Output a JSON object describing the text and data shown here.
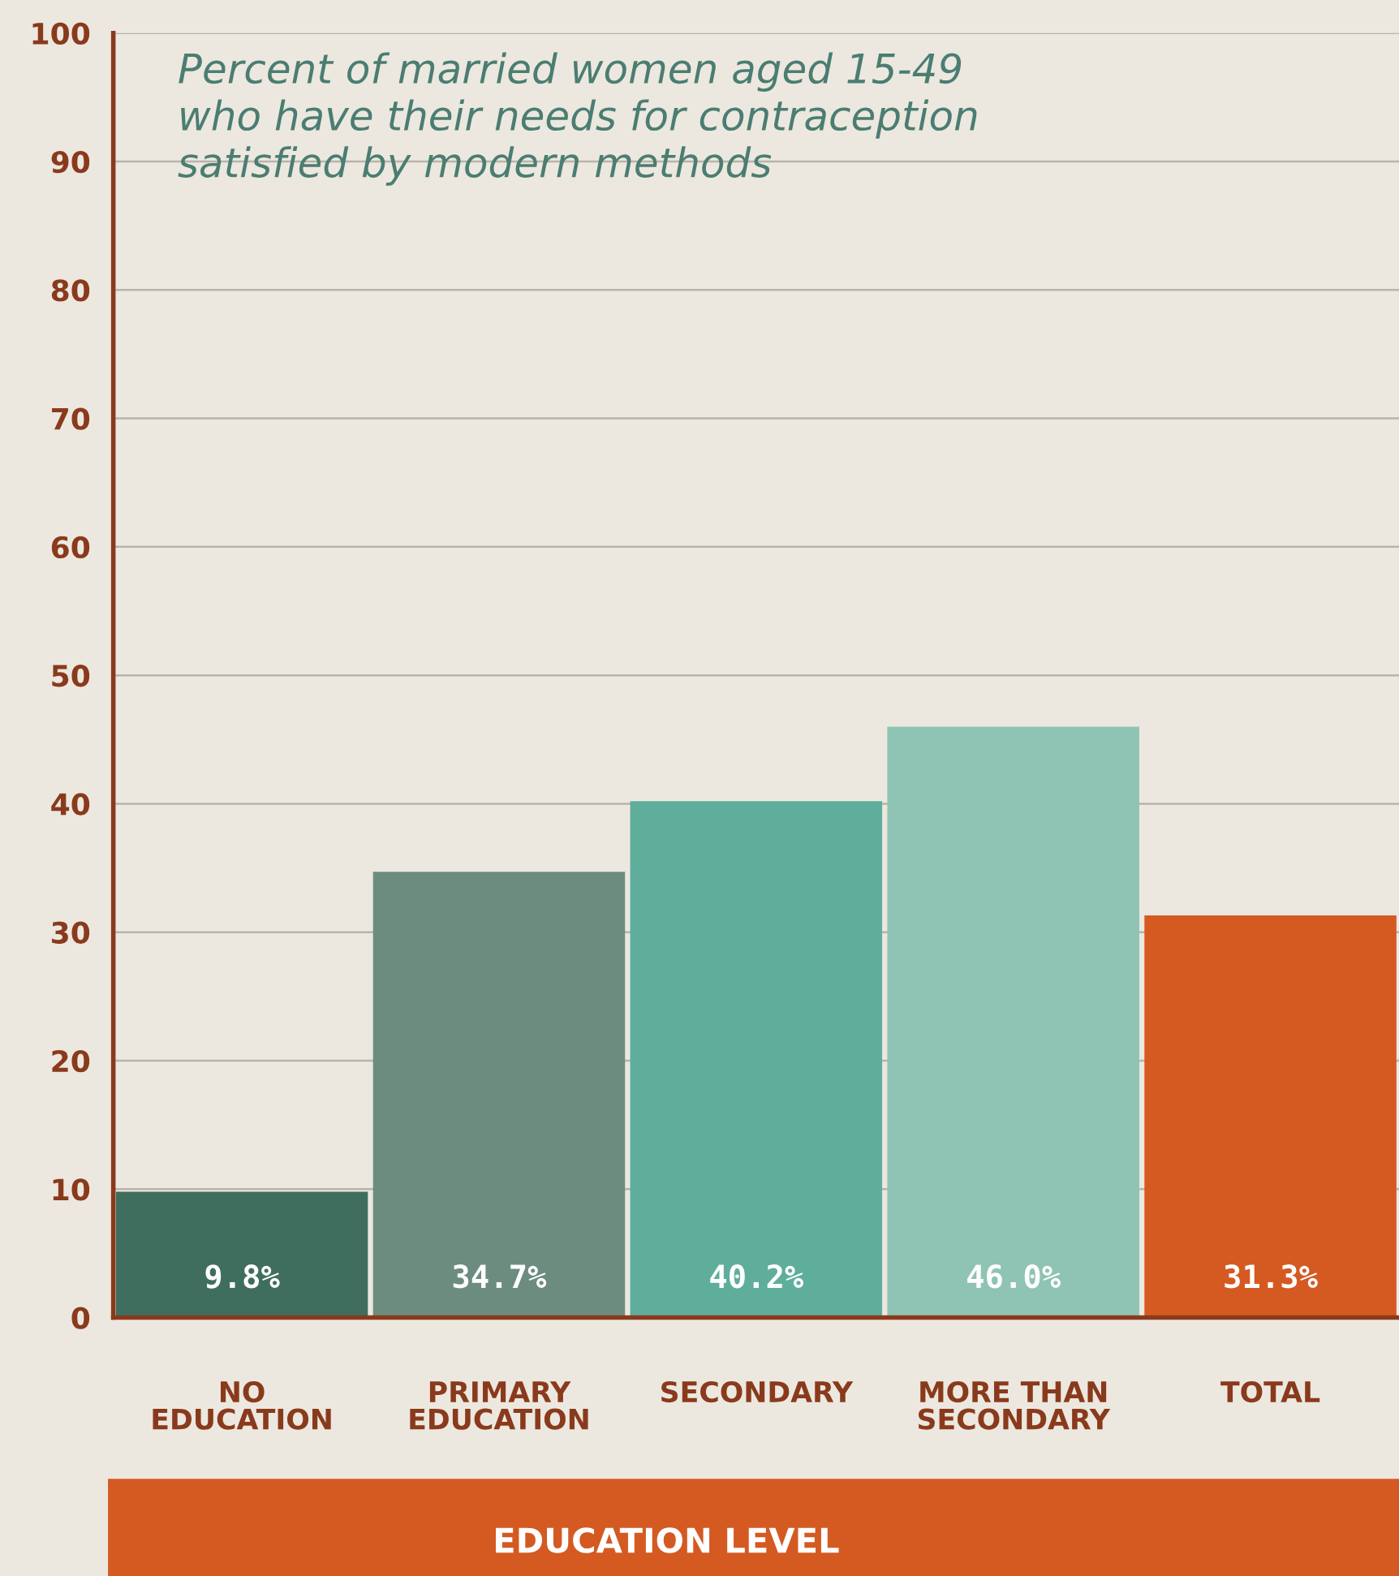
{
  "chart_data": {
    "type": "bar",
    "title": "Percent of married women aged 15-49\nwho have their needs for contraception\nsatisfied by modern methods",
    "xlabel": "EDUCATION LEVEL",
    "categories": [
      "NO\nEDUCATION",
      "PRIMARY\nEDUCATION",
      "SECONDARY",
      "MORE THAN\nSECONDARY",
      "TOTAL"
    ],
    "values": [
      9.8,
      34.7,
      40.2,
      46.0,
      31.3
    ],
    "colors": [
      "#3f6e5f",
      "#6d8c80",
      "#5fae9b",
      "#8fc3b3",
      "#d45a22"
    ],
    "value_labels": [
      "9.8%",
      "34.7%",
      "40.2%",
      "46.0%",
      "31.3%"
    ],
    "ylim": [
      0,
      100
    ],
    "yticks": [
      0,
      10,
      20,
      30,
      40,
      50,
      60,
      70,
      80,
      90,
      100
    ],
    "grid": "y"
  }
}
